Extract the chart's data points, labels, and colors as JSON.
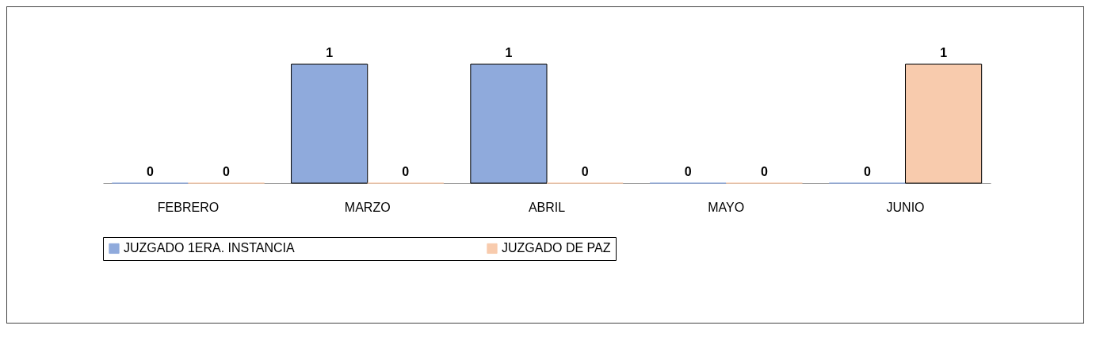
{
  "chart_data": {
    "type": "bar",
    "categories": [
      "FEBRERO",
      "MARZO",
      "ABRIL",
      "MAYO",
      "JUNIO"
    ],
    "series": [
      {
        "name": "JUZGADO 1ERA. INSTANCIA",
        "color": "#8faadc",
        "values": [
          0,
          1,
          1,
          0,
          0
        ]
      },
      {
        "name": "JUZGADO DE PAZ",
        "color": "#f8cbad",
        "values": [
          0,
          0,
          0,
          0,
          1
        ]
      }
    ],
    "data_labels": true,
    "legend": "bottom"
  }
}
